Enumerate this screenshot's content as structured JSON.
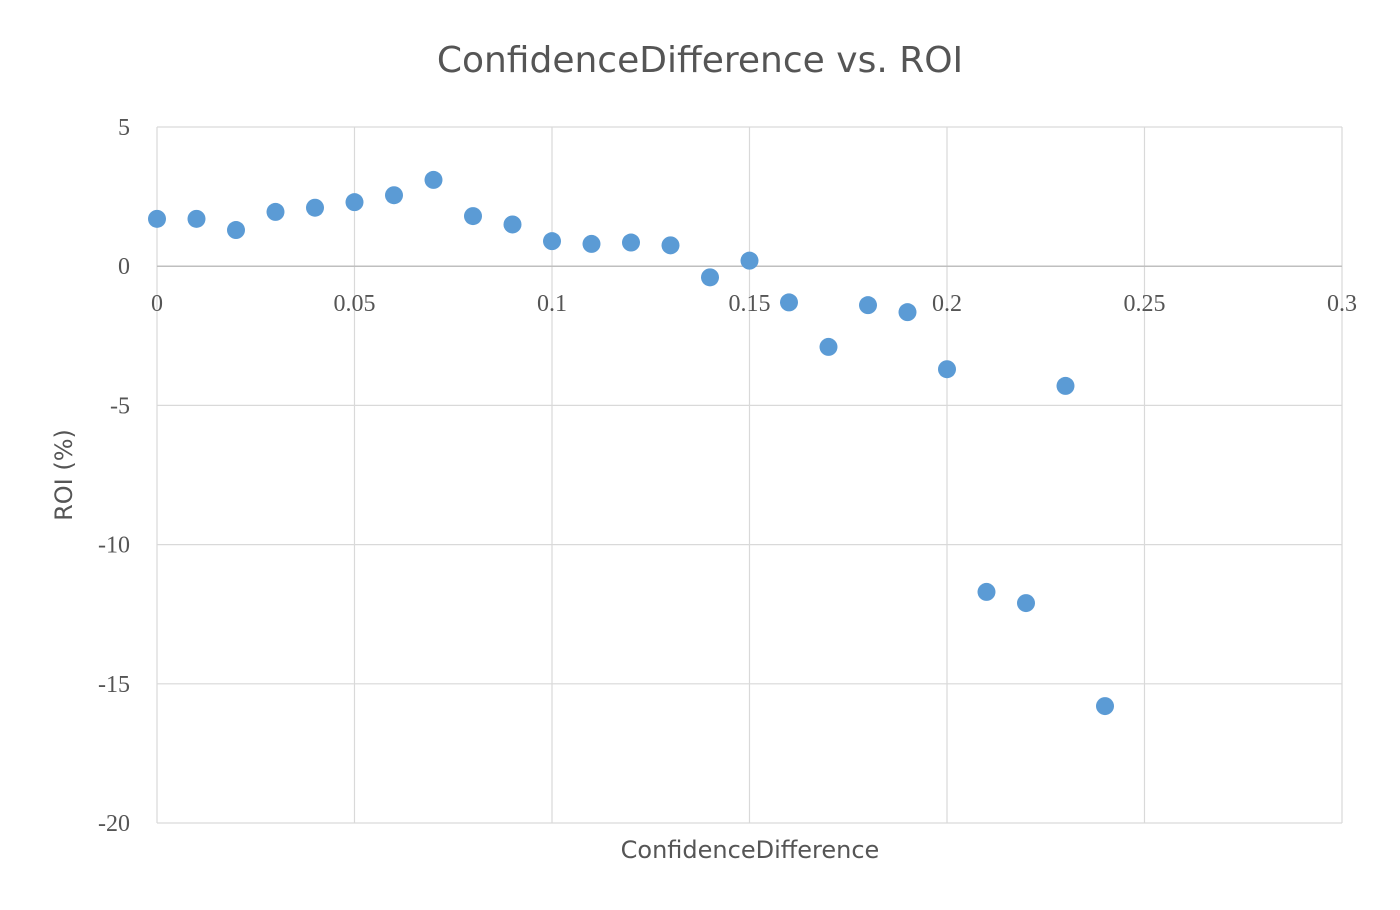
{
  "chart_data": {
    "type": "scatter",
    "title": "ConfidenceDifference vs. ROI",
    "xlabel": "ConfidenceDifference",
    "ylabel": "ROI (%)",
    "xlim": [
      0,
      0.3
    ],
    "ylim": [
      -20,
      5
    ],
    "x_ticks": [
      0,
      0.05,
      0.1,
      0.15,
      0.2,
      0.25,
      0.3
    ],
    "x_tick_labels": [
      "0",
      "0.05",
      "0.1",
      "0.15",
      "0.2",
      "0.25",
      "0.3"
    ],
    "y_ticks": [
      5,
      0,
      -5,
      -10,
      -15,
      -20
    ],
    "y_tick_labels": [
      "5",
      "0",
      "-5",
      "-10",
      "-15",
      "-20"
    ],
    "grid": true,
    "legend": "none",
    "marker_color": "#5b9bd5",
    "points": [
      {
        "x": 0.0,
        "y": 1.7
      },
      {
        "x": 0.01,
        "y": 1.7
      },
      {
        "x": 0.02,
        "y": 1.3
      },
      {
        "x": 0.03,
        "y": 1.95
      },
      {
        "x": 0.04,
        "y": 2.1
      },
      {
        "x": 0.05,
        "y": 2.3
      },
      {
        "x": 0.06,
        "y": 2.55
      },
      {
        "x": 0.07,
        "y": 3.1
      },
      {
        "x": 0.08,
        "y": 1.8
      },
      {
        "x": 0.09,
        "y": 1.5
      },
      {
        "x": 0.1,
        "y": 0.9
      },
      {
        "x": 0.11,
        "y": 0.8
      },
      {
        "x": 0.12,
        "y": 0.85
      },
      {
        "x": 0.13,
        "y": 0.75
      },
      {
        "x": 0.14,
        "y": -0.4
      },
      {
        "x": 0.15,
        "y": 0.2
      },
      {
        "x": 0.16,
        "y": -1.3
      },
      {
        "x": 0.17,
        "y": -2.9
      },
      {
        "x": 0.18,
        "y": -1.4
      },
      {
        "x": 0.19,
        "y": -1.65
      },
      {
        "x": 0.2,
        "y": -3.7
      },
      {
        "x": 0.21,
        "y": -11.7
      },
      {
        "x": 0.22,
        "y": -12.1
      },
      {
        "x": 0.23,
        "y": -4.3
      },
      {
        "x": 0.24,
        "y": -15.8
      }
    ]
  }
}
